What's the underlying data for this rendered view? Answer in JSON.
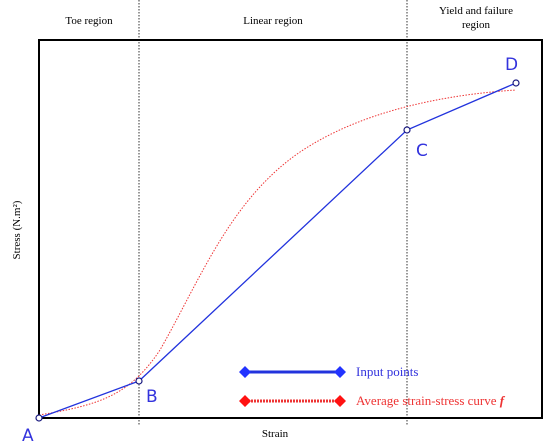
{
  "regions": [
    "Toe region",
    "Linear region",
    "Yield and failure",
    "region"
  ],
  "x_axis_label": "Strain",
  "y_axis_label": "Stress (N.m²)",
  "points": [
    "A",
    "B",
    "C",
    "D"
  ],
  "legend": {
    "input": "Input points",
    "average": "Average strain-stress curve",
    "average_symbol": "f"
  }
}
